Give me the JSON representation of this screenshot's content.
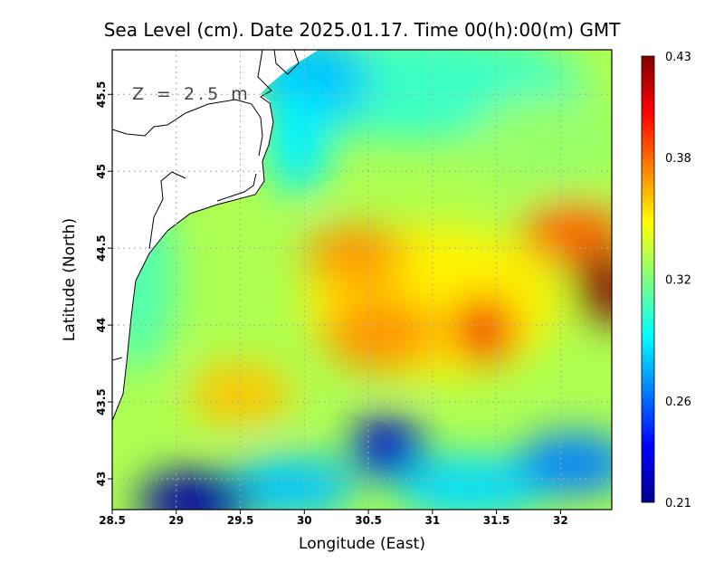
{
  "chart_data": {
    "type": "heatmap",
    "title": "Sea Level (cm). Date 2025.01.17. Time 00(h):00(m) GMT",
    "xlabel": "Longitude (East)",
    "ylabel": "Latitude (North)",
    "annotation": "Z = 2.5 m",
    "xlim": [
      28.5,
      32.4
    ],
    "ylim": [
      42.8,
      45.79
    ],
    "xticks": [
      28.5,
      29,
      29.5,
      30,
      30.5,
      31,
      31.5,
      32
    ],
    "xtick_labels": [
      "28.5",
      "29",
      "29.5",
      "30",
      "30.5",
      "31",
      "31.5",
      "32"
    ],
    "yticks": [
      43,
      43.5,
      44,
      44.5,
      45,
      45.5
    ],
    "ytick_labels": [
      "43",
      "43.5",
      "44",
      "44.5",
      "45",
      "45.5"
    ],
    "grid": true,
    "colormap": "jet",
    "colorbar": {
      "range": [
        0.21,
        0.43
      ],
      "ticks": [
        0.43,
        0.38,
        0.32,
        0.26,
        0.21
      ],
      "tick_labels": [
        "0.43",
        "0.38",
        "0.32",
        "0.26",
        "0.21"
      ],
      "placement": "right"
    },
    "background_value": 0.33,
    "field_features": [
      {
        "lon": 28.7,
        "lat": 44.3,
        "value": 0.31,
        "rlon": 0.3,
        "rlat": 0.6
      },
      {
        "lon": 30.9,
        "lat": 45.55,
        "value": 0.305,
        "rlon": 1.3,
        "rlat": 0.35
      },
      {
        "lon": 30.05,
        "lat": 45.6,
        "value": 0.28,
        "rlon": 0.45,
        "rlat": 0.3
      },
      {
        "lon": 29.95,
        "lat": 45.2,
        "value": 0.29,
        "rlon": 0.25,
        "rlat": 0.35
      },
      {
        "lon": 31.9,
        "lat": 45.2,
        "value": 0.325,
        "rlon": 0.6,
        "rlat": 0.3
      },
      {
        "lon": 31.0,
        "lat": 44.15,
        "value": 0.35,
        "rlon": 1.0,
        "rlat": 0.5
      },
      {
        "lon": 30.4,
        "lat": 44.45,
        "value": 0.37,
        "rlon": 0.4,
        "rlat": 0.2
      },
      {
        "lon": 30.6,
        "lat": 43.95,
        "value": 0.37,
        "rlon": 0.45,
        "rlat": 0.25
      },
      {
        "lon": 29.5,
        "lat": 43.55,
        "value": 0.36,
        "rlon": 0.4,
        "rlat": 0.2
      },
      {
        "lon": 32.1,
        "lat": 44.6,
        "value": 0.38,
        "rlon": 0.4,
        "rlat": 0.2
      },
      {
        "lon": 31.4,
        "lat": 43.97,
        "value": 0.405,
        "rlon": 0.25,
        "rlat": 0.22
      },
      {
        "lon": 32.35,
        "lat": 44.25,
        "value": 0.43,
        "rlon": 0.22,
        "rlat": 0.25
      },
      {
        "lon": 29.9,
        "lat": 42.95,
        "value": 0.28,
        "rlon": 0.5,
        "rlat": 0.2
      },
      {
        "lon": 31.3,
        "lat": 42.95,
        "value": 0.285,
        "rlon": 0.6,
        "rlat": 0.2
      },
      {
        "lon": 32.1,
        "lat": 43.1,
        "value": 0.265,
        "rlon": 0.45,
        "rlat": 0.2
      },
      {
        "lon": 29.15,
        "lat": 42.85,
        "value": 0.215,
        "rlon": 0.45,
        "rlat": 0.2
      },
      {
        "lon": 30.65,
        "lat": 43.2,
        "value": 0.225,
        "rlon": 0.3,
        "rlat": 0.2
      }
    ]
  }
}
